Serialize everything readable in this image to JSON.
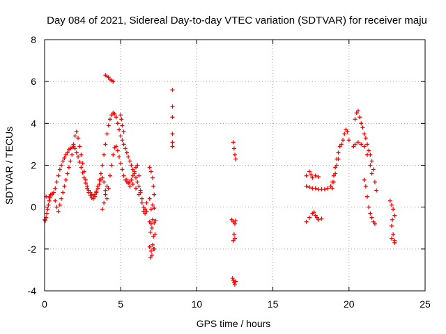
{
  "chart_data": {
    "type": "scatter",
    "title": "Day 084 of 2021, Sidereal Day-to-day VTEC variation (SDTVAR) for receiver maju",
    "xlabel": "GPS time / hours",
    "ylabel": "SDTVAR / TECUs",
    "xlim": [
      0,
      25
    ],
    "ylim": [
      -4,
      8
    ],
    "xticks": [
      0,
      5,
      10,
      15,
      20,
      25
    ],
    "yticks": [
      -4,
      -2,
      0,
      2,
      4,
      6,
      8
    ],
    "grid": true,
    "marker": "plus",
    "colors": {
      "series": "#ff0000",
      "grid": "#a0a0a0",
      "axes": "#000000"
    },
    "series": [
      {
        "name": "SDTVAR",
        "points": [
          [
            0.0,
            -0.6
          ],
          [
            0.05,
            -0.65
          ],
          [
            0.1,
            -0.5
          ],
          [
            0.15,
            -0.3
          ],
          [
            0.2,
            -0.1
          ],
          [
            0.25,
            0.1
          ],
          [
            0.3,
            0.3
          ],
          [
            0.35,
            0.45
          ],
          [
            0.4,
            0.6
          ],
          [
            0.5,
            0.65
          ],
          [
            0.6,
            0.7
          ],
          [
            0.7,
            0.9
          ],
          [
            0.8,
            1.2
          ],
          [
            0.9,
            1.5
          ],
          [
            1.0,
            1.8
          ],
          [
            1.1,
            2.0
          ],
          [
            1.2,
            2.2
          ],
          [
            1.3,
            2.35
          ],
          [
            1.4,
            2.5
          ],
          [
            1.5,
            2.6
          ],
          [
            1.6,
            2.75
          ],
          [
            1.7,
            2.8
          ],
          [
            1.8,
            2.85
          ],
          [
            1.9,
            2.9
          ],
          [
            2.0,
            2.8
          ],
          [
            2.1,
            2.6
          ],
          [
            2.2,
            2.4
          ],
          [
            2.3,
            2.15
          ],
          [
            2.4,
            1.9
          ],
          [
            2.5,
            1.65
          ],
          [
            2.6,
            1.4
          ],
          [
            2.7,
            1.15
          ],
          [
            2.8,
            0.9
          ],
          [
            2.9,
            0.7
          ],
          [
            3.0,
            0.55
          ],
          [
            3.1,
            0.45
          ],
          [
            3.2,
            0.4
          ],
          [
            3.3,
            0.5
          ],
          [
            3.4,
            0.7
          ],
          [
            3.5,
            1.0
          ],
          [
            3.6,
            1.3
          ],
          [
            3.7,
            1.6
          ],
          [
            3.8,
            2.0
          ],
          [
            3.9,
            2.5
          ],
          [
            4.0,
            3.0
          ],
          [
            4.1,
            3.5
          ],
          [
            4.2,
            3.9
          ],
          [
            4.3,
            4.2
          ],
          [
            4.4,
            4.4
          ],
          [
            4.5,
            4.5
          ],
          [
            4.6,
            4.45
          ],
          [
            4.7,
            4.3
          ],
          [
            4.8,
            4.0
          ],
          [
            4.9,
            3.7
          ],
          [
            5.0,
            3.4
          ],
          [
            5.1,
            3.2
          ],
          [
            5.2,
            3.0
          ],
          [
            5.3,
            2.8
          ],
          [
            5.4,
            2.6
          ],
          [
            5.5,
            2.4
          ],
          [
            5.6,
            2.2
          ],
          [
            5.7,
            2.0
          ],
          [
            5.8,
            1.8
          ],
          [
            5.9,
            1.6
          ],
          [
            6.0,
            1.4
          ],
          [
            6.1,
            1.2
          ],
          [
            6.2,
            1.0
          ],
          [
            6.3,
            0.7
          ],
          [
            0.1,
            0.5
          ],
          [
            0.3,
            0.5
          ],
          [
            0.5,
            0.6
          ],
          [
            0.7,
            0.3
          ],
          [
            0.8,
            0.0
          ],
          [
            0.9,
            -0.2
          ],
          [
            1.0,
            0.1
          ],
          [
            1.1,
            0.4
          ],
          [
            1.2,
            0.7
          ],
          [
            1.3,
            1.0
          ],
          [
            1.4,
            1.3
          ],
          [
            1.5,
            1.6
          ],
          [
            1.6,
            1.9
          ],
          [
            1.7,
            2.2
          ],
          [
            1.8,
            2.5
          ],
          [
            1.9,
            3.0
          ],
          [
            2.0,
            3.4
          ],
          [
            2.1,
            3.6
          ],
          [
            2.2,
            3.3
          ],
          [
            2.3,
            2.9
          ],
          [
            2.4,
            2.5
          ],
          [
            2.5,
            2.1
          ],
          [
            2.6,
            1.7
          ],
          [
            2.7,
            1.3
          ],
          [
            2.8,
            1.0
          ],
          [
            2.9,
            0.8
          ],
          [
            3.0,
            0.7
          ],
          [
            3.1,
            0.6
          ],
          [
            3.2,
            0.55
          ],
          [
            3.3,
            0.6
          ],
          [
            3.4,
            0.75
          ],
          [
            3.5,
            0.9
          ],
          [
            3.6,
            1.1
          ],
          [
            3.7,
            1.3
          ],
          [
            3.8,
            1.4
          ],
          [
            3.9,
            1.2
          ],
          [
            4.0,
            0.8
          ],
          [
            4.1,
            0.4
          ],
          [
            4.2,
            0.9
          ],
          [
            4.3,
            1.5
          ],
          [
            4.4,
            2.0
          ],
          [
            4.5,
            2.5
          ],
          [
            4.6,
            2.85
          ],
          [
            4.7,
            2.9
          ],
          [
            4.8,
            2.7
          ],
          [
            4.9,
            2.4
          ],
          [
            5.0,
            2.1
          ],
          [
            5.1,
            1.8
          ],
          [
            5.2,
            1.5
          ],
          [
            5.3,
            1.3
          ],
          [
            5.4,
            1.2
          ],
          [
            5.5,
            1.15
          ],
          [
            5.6,
            1.2
          ],
          [
            5.7,
            1.3
          ],
          [
            5.8,
            1.5
          ],
          [
            5.9,
            1.7
          ],
          [
            6.0,
            1.9
          ],
          [
            6.1,
            2.0
          ],
          [
            6.2,
            1.5
          ],
          [
            6.3,
            0.8
          ],
          [
            6.4,
            0.2
          ],
          [
            6.5,
            -0.2
          ],
          [
            6.6,
            -0.1
          ],
          [
            6.7,
            0.2
          ],
          [
            3.8,
            -0.1
          ],
          [
            3.9,
            0.2
          ],
          [
            4.0,
            0.6
          ],
          [
            4.1,
            1.0
          ],
          [
            5.0,
            4.4
          ],
          [
            5.05,
            4.2
          ],
          [
            5.1,
            3.9
          ],
          [
            5.2,
            3.6
          ],
          [
            4.0,
            6.3
          ],
          [
            4.1,
            6.25
          ],
          [
            4.2,
            6.2
          ],
          [
            4.3,
            6.1
          ],
          [
            4.4,
            6.05
          ],
          [
            4.5,
            6.0
          ],
          [
            5.4,
            1.3
          ],
          [
            5.6,
            1.0
          ],
          [
            5.8,
            1.1
          ],
          [
            6.0,
            0.9
          ],
          [
            6.2,
            0.6
          ],
          [
            6.4,
            0.4
          ],
          [
            6.5,
            0.0
          ],
          [
            6.6,
            -0.3
          ],
          [
            6.7,
            -0.2
          ],
          [
            6.9,
            0.4
          ],
          [
            7.0,
            -0.1
          ],
          [
            7.1,
            0.1
          ],
          [
            7.2,
            -0.05
          ],
          [
            6.9,
            1.9
          ],
          [
            7.0,
            1.7
          ],
          [
            7.1,
            1.4
          ],
          [
            7.15,
            1.0
          ],
          [
            7.2,
            0.6
          ],
          [
            6.9,
            -0.7
          ],
          [
            7.0,
            -0.8
          ],
          [
            7.1,
            -0.6
          ],
          [
            7.2,
            -0.75
          ],
          [
            7.3,
            -0.65
          ],
          [
            6.95,
            -1.2
          ],
          [
            7.05,
            -1.0
          ],
          [
            7.15,
            -1.4
          ],
          [
            7.25,
            -1.3
          ],
          [
            6.9,
            -1.9
          ],
          [
            7.0,
            -2.1
          ],
          [
            7.1,
            -1.8
          ],
          [
            7.2,
            -2.0
          ],
          [
            6.95,
            -2.4
          ],
          [
            7.05,
            -2.3
          ],
          [
            7.15,
            -2.0
          ],
          [
            8.4,
            5.6
          ],
          [
            8.4,
            4.8
          ],
          [
            8.4,
            4.3
          ],
          [
            8.4,
            3.5
          ],
          [
            8.4,
            3.1
          ],
          [
            8.4,
            2.9
          ],
          [
            12.4,
            3.1
          ],
          [
            12.45,
            2.8
          ],
          [
            12.5,
            2.5
          ],
          [
            12.55,
            2.3
          ],
          [
            12.3,
            -0.6
          ],
          [
            12.4,
            -0.7
          ],
          [
            12.5,
            -0.8
          ],
          [
            12.55,
            -0.65
          ],
          [
            12.45,
            -1.3
          ],
          [
            12.5,
            -1.5
          ],
          [
            12.4,
            -1.6
          ],
          [
            12.35,
            -3.4
          ],
          [
            12.4,
            -3.5
          ],
          [
            12.45,
            -3.6
          ],
          [
            12.5,
            -3.7
          ],
          [
            12.55,
            -3.55
          ],
          [
            17.2,
            1.0
          ],
          [
            17.4,
            0.95
          ],
          [
            17.6,
            0.9
          ],
          [
            17.8,
            0.9
          ],
          [
            18.0,
            0.85
          ],
          [
            18.2,
            0.85
          ],
          [
            18.4,
            0.85
          ],
          [
            18.6,
            0.9
          ],
          [
            18.8,
            1.0
          ],
          [
            18.9,
            1.2
          ],
          [
            19.0,
            1.5
          ],
          [
            19.1,
            1.9
          ],
          [
            19.2,
            2.3
          ],
          [
            19.3,
            2.6
          ],
          [
            19.4,
            2.9
          ],
          [
            19.5,
            3.0
          ],
          [
            19.6,
            3.2
          ],
          [
            19.7,
            3.5
          ],
          [
            19.8,
            3.7
          ],
          [
            19.9,
            3.6
          ],
          [
            20.0,
            3.2
          ],
          [
            17.2,
            1.5
          ],
          [
            17.4,
            1.7
          ],
          [
            17.5,
            1.55
          ],
          [
            17.6,
            1.4
          ],
          [
            17.8,
            1.5
          ],
          [
            18.0,
            1.45
          ],
          [
            17.2,
            -0.7
          ],
          [
            17.4,
            -0.5
          ],
          [
            17.6,
            -0.3
          ],
          [
            17.7,
            -0.25
          ],
          [
            17.8,
            -0.4
          ],
          [
            17.9,
            -0.5
          ],
          [
            18.0,
            -0.6
          ],
          [
            18.2,
            -0.55
          ],
          [
            18.9,
            0.9
          ],
          [
            19.0,
            1.2
          ],
          [
            19.1,
            1.6
          ],
          [
            19.2,
            2.0
          ],
          [
            19.3,
            2.3
          ],
          [
            20.3,
            2.9
          ],
          [
            20.4,
            4.2
          ],
          [
            20.5,
            4.5
          ],
          [
            20.6,
            4.6
          ],
          [
            20.7,
            4.3
          ],
          [
            20.8,
            4.0
          ],
          [
            20.9,
            3.8
          ],
          [
            21.0,
            3.5
          ],
          [
            21.1,
            3.3
          ],
          [
            21.2,
            3.0
          ],
          [
            21.3,
            2.7
          ],
          [
            21.4,
            2.5
          ],
          [
            21.5,
            2.2
          ],
          [
            21.6,
            1.8
          ],
          [
            21.7,
            1.2
          ],
          [
            21.8,
            0.8
          ],
          [
            20.4,
            3.0
          ],
          [
            20.6,
            3.1
          ],
          [
            20.8,
            3.0
          ],
          [
            21.0,
            2.9
          ],
          [
            21.2,
            2.5
          ],
          [
            21.4,
            2.0
          ],
          [
            21.5,
            1.6
          ],
          [
            21.0,
            1.3
          ],
          [
            21.1,
            1.0
          ],
          [
            21.2,
            0.5
          ],
          [
            21.3,
            0.0
          ],
          [
            21.4,
            -0.3
          ],
          [
            21.5,
            -0.5
          ],
          [
            21.6,
            -0.7
          ],
          [
            21.7,
            -0.8
          ],
          [
            22.7,
            0.3
          ],
          [
            22.8,
            0.1
          ],
          [
            22.9,
            -0.1
          ],
          [
            23.0,
            -0.4
          ],
          [
            22.8,
            -0.9
          ],
          [
            22.9,
            -1.3
          ],
          [
            23.0,
            -1.6
          ],
          [
            22.8,
            -1.5
          ],
          [
            23.0,
            -1.7
          ],
          [
            22.85,
            -0.6
          ]
        ]
      }
    ]
  }
}
